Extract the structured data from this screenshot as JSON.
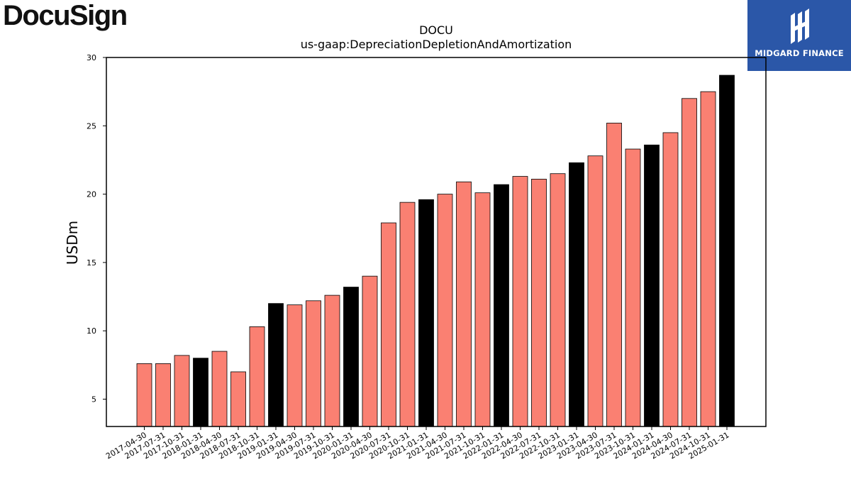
{
  "logos": {
    "left_text": "DocuSign",
    "right_text": "MIDGARD FINANCE"
  },
  "colors": {
    "quarter_bar": "#fa8072",
    "fiscal_year_end_bar": "#000000",
    "bar_edge": "#000000",
    "right_logo_bg": "#2b57a8"
  },
  "chart_data": {
    "type": "bar",
    "title_line1": "DOCU",
    "title_line2": "us-gaap:DepreciationDepletionAndAmortization",
    "xlabel": "",
    "ylabel": "USDm",
    "ylim": [
      3,
      30
    ],
    "yticks": [
      5,
      10,
      15,
      20,
      25,
      30
    ],
    "grid": false,
    "categories": [
      "2017-04-30",
      "2017-07-31",
      "2017-10-31",
      "2018-01-31",
      "2018-04-30",
      "2018-07-31",
      "2018-10-31",
      "2019-01-31",
      "2019-04-30",
      "2019-07-31",
      "2019-10-31",
      "2020-01-31",
      "2020-04-30",
      "2020-07-31",
      "2020-10-31",
      "2021-01-31",
      "2021-04-30",
      "2021-07-31",
      "2021-10-31",
      "2022-01-31",
      "2022-04-30",
      "2022-07-31",
      "2022-10-31",
      "2023-01-31",
      "2023-04-30",
      "2023-07-31",
      "2023-10-31",
      "2024-01-31",
      "2024-04-30",
      "2024-07-31",
      "2024-10-31",
      "2025-01-31"
    ],
    "values": [
      7.6,
      7.6,
      8.2,
      8.0,
      8.5,
      7.0,
      10.3,
      12.0,
      11.9,
      12.2,
      12.6,
      13.2,
      14.0,
      17.9,
      19.4,
      19.6,
      20.0,
      20.9,
      20.1,
      20.7,
      21.3,
      21.1,
      21.5,
      22.3,
      22.8,
      25.2,
      23.3,
      23.6,
      24.5,
      27.0,
      27.5,
      28.7
    ],
    "fiscal_year_end": [
      false,
      false,
      false,
      true,
      false,
      false,
      false,
      true,
      false,
      false,
      false,
      true,
      false,
      false,
      false,
      true,
      false,
      false,
      false,
      true,
      false,
      false,
      false,
      true,
      false,
      false,
      false,
      true,
      false,
      false,
      false,
      true
    ]
  }
}
